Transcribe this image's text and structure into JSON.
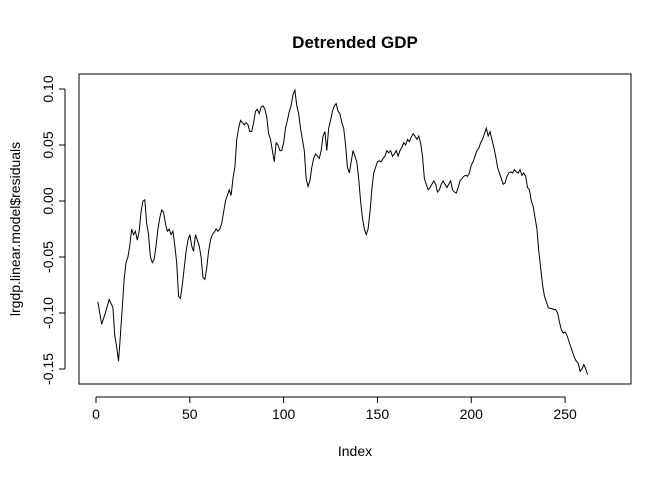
{
  "chart_data": {
    "type": "line",
    "title": "Detrended GDP",
    "xlabel": "Index",
    "ylabel": "lrgdp.linear.model$residuals",
    "xlim": [
      0,
      275
    ],
    "ylim": [
      -0.155,
      0.1
    ],
    "x_ticks": [
      0,
      50,
      100,
      150,
      200,
      250
    ],
    "y_ticks": [
      -0.15,
      -0.1,
      -0.05,
      0.0,
      0.05,
      0.1
    ],
    "y_tick_labels": [
      "-0.15",
      "-0.10",
      "-0.05",
      "0.00",
      "0.05",
      "0.10"
    ],
    "grid": false,
    "series": [
      {
        "points": [
          [
            1,
            -0.09
          ],
          [
            3,
            -0.11
          ],
          [
            5,
            -0.1
          ],
          [
            7,
            -0.088
          ],
          [
            9,
            -0.095
          ],
          [
            10,
            -0.12
          ],
          [
            11,
            -0.13
          ],
          [
            12,
            -0.143
          ],
          [
            13,
            -0.12
          ],
          [
            14,
            -0.095
          ],
          [
            15,
            -0.07
          ],
          [
            16,
            -0.055
          ],
          [
            17,
            -0.05
          ],
          [
            18,
            -0.04
          ],
          [
            19,
            -0.025
          ],
          [
            20,
            -0.03
          ],
          [
            21,
            -0.027
          ],
          [
            22,
            -0.035
          ],
          [
            23,
            -0.027
          ],
          [
            24,
            -0.01
          ],
          [
            25,
            0.0
          ],
          [
            26,
            0.001
          ],
          [
            27,
            -0.02
          ],
          [
            28,
            -0.03
          ],
          [
            29,
            -0.05
          ],
          [
            30,
            -0.055
          ],
          [
            31,
            -0.052
          ],
          [
            32,
            -0.04
          ],
          [
            33,
            -0.025
          ],
          [
            34,
            -0.015
          ],
          [
            35,
            -0.008
          ],
          [
            36,
            -0.01
          ],
          [
            37,
            -0.02
          ],
          [
            38,
            -0.027
          ],
          [
            39,
            -0.025
          ],
          [
            40,
            -0.03
          ],
          [
            41,
            -0.027
          ],
          [
            42,
            -0.04
          ],
          [
            43,
            -0.055
          ],
          [
            44,
            -0.085
          ],
          [
            45,
            -0.087
          ],
          [
            46,
            -0.075
          ],
          [
            47,
            -0.06
          ],
          [
            48,
            -0.045
          ],
          [
            49,
            -0.035
          ],
          [
            50,
            -0.03
          ],
          [
            51,
            -0.04
          ],
          [
            52,
            -0.045
          ],
          [
            53,
            -0.03
          ],
          [
            54,
            -0.035
          ],
          [
            55,
            -0.04
          ],
          [
            56,
            -0.05
          ],
          [
            57,
            -0.068
          ],
          [
            58,
            -0.07
          ],
          [
            59,
            -0.06
          ],
          [
            60,
            -0.045
          ],
          [
            61,
            -0.035
          ],
          [
            62,
            -0.03
          ],
          [
            63,
            -0.028
          ],
          [
            64,
            -0.025
          ],
          [
            65,
            -0.027
          ],
          [
            66,
            -0.025
          ],
          [
            67,
            -0.02
          ],
          [
            68,
            -0.01
          ],
          [
            69,
            0.0
          ],
          [
            70,
            0.005
          ],
          [
            71,
            0.01
          ],
          [
            72,
            0.005
          ],
          [
            73,
            0.02
          ],
          [
            74,
            0.03
          ],
          [
            75,
            0.055
          ],
          [
            76,
            0.065
          ],
          [
            77,
            0.072
          ],
          [
            78,
            0.07
          ],
          [
            79,
            0.068
          ],
          [
            80,
            0.07
          ],
          [
            81,
            0.068
          ],
          [
            82,
            0.062
          ],
          [
            83,
            0.062
          ],
          [
            84,
            0.07
          ],
          [
            85,
            0.08
          ],
          [
            86,
            0.082
          ],
          [
            87,
            0.078
          ],
          [
            88,
            0.084
          ],
          [
            89,
            0.085
          ],
          [
            90,
            0.082
          ],
          [
            91,
            0.075
          ],
          [
            92,
            0.06
          ],
          [
            93,
            0.055
          ],
          [
            94,
            0.045
          ],
          [
            95,
            0.035
          ],
          [
            96,
            0.052
          ],
          [
            97,
            0.05
          ],
          [
            98,
            0.045
          ],
          [
            99,
            0.045
          ],
          [
            100,
            0.052
          ],
          [
            101,
            0.065
          ],
          [
            102,
            0.072
          ],
          [
            103,
            0.08
          ],
          [
            104,
            0.085
          ],
          [
            105,
            0.095
          ],
          [
            106,
            0.099
          ],
          [
            107,
            0.085
          ],
          [
            108,
            0.078
          ],
          [
            109,
            0.065
          ],
          [
            110,
            0.055
          ],
          [
            111,
            0.045
          ],
          [
            112,
            0.02
          ],
          [
            113,
            0.013
          ],
          [
            114,
            0.018
          ],
          [
            115,
            0.03
          ],
          [
            116,
            0.038
          ],
          [
            117,
            0.042
          ],
          [
            118,
            0.04
          ],
          [
            119,
            0.038
          ],
          [
            120,
            0.045
          ],
          [
            121,
            0.058
          ],
          [
            122,
            0.062
          ],
          [
            123,
            0.045
          ],
          [
            124,
            0.065
          ],
          [
            125,
            0.072
          ],
          [
            126,
            0.08
          ],
          [
            127,
            0.085
          ],
          [
            128,
            0.087
          ],
          [
            129,
            0.08
          ],
          [
            130,
            0.078
          ],
          [
            131,
            0.07
          ],
          [
            132,
            0.065
          ],
          [
            133,
            0.05
          ],
          [
            134,
            0.03
          ],
          [
            135,
            0.025
          ],
          [
            136,
            0.035
          ],
          [
            137,
            0.045
          ],
          [
            138,
            0.04
          ],
          [
            139,
            0.035
          ],
          [
            140,
            0.02
          ],
          [
            141,
            0.0
          ],
          [
            142,
            -0.015
          ],
          [
            143,
            -0.025
          ],
          [
            144,
            -0.03
          ],
          [
            145,
            -0.025
          ],
          [
            146,
            -0.01
          ],
          [
            147,
            0.01
          ],
          [
            148,
            0.025
          ],
          [
            149,
            0.03
          ],
          [
            150,
            0.035
          ],
          [
            151,
            0.036
          ],
          [
            152,
            0.035
          ],
          [
            153,
            0.038
          ],
          [
            154,
            0.04
          ],
          [
            155,
            0.045
          ],
          [
            156,
            0.043
          ],
          [
            157,
            0.045
          ],
          [
            158,
            0.04
          ],
          [
            159,
            0.042
          ],
          [
            160,
            0.045
          ],
          [
            161,
            0.04
          ],
          [
            162,
            0.045
          ],
          [
            163,
            0.048
          ],
          [
            164,
            0.052
          ],
          [
            165,
            0.05
          ],
          [
            166,
            0.055
          ],
          [
            167,
            0.053
          ],
          [
            168,
            0.057
          ],
          [
            169,
            0.06
          ],
          [
            170,
            0.058
          ],
          [
            171,
            0.055
          ],
          [
            172,
            0.058
          ],
          [
            173,
            0.052
          ],
          [
            174,
            0.04
          ],
          [
            175,
            0.02
          ],
          [
            176,
            0.015
          ],
          [
            177,
            0.01
          ],
          [
            178,
            0.012
          ],
          [
            179,
            0.015
          ],
          [
            180,
            0.018
          ],
          [
            181,
            0.015
          ],
          [
            182,
            0.008
          ],
          [
            183,
            0.01
          ],
          [
            184,
            0.015
          ],
          [
            185,
            0.018
          ],
          [
            186,
            0.015
          ],
          [
            187,
            0.012
          ],
          [
            188,
            0.015
          ],
          [
            189,
            0.018
          ],
          [
            190,
            0.01
          ],
          [
            191,
            0.008
          ],
          [
            192,
            0.007
          ],
          [
            193,
            0.012
          ],
          [
            194,
            0.018
          ],
          [
            195,
            0.02
          ],
          [
            196,
            0.022
          ],
          [
            197,
            0.023
          ],
          [
            198,
            0.022
          ],
          [
            199,
            0.025
          ],
          [
            200,
            0.032
          ],
          [
            201,
            0.035
          ],
          [
            202,
            0.04
          ],
          [
            203,
            0.045
          ],
          [
            204,
            0.047
          ],
          [
            205,
            0.052
          ],
          [
            206,
            0.055
          ],
          [
            207,
            0.06
          ],
          [
            208,
            0.065
          ],
          [
            209,
            0.058
          ],
          [
            210,
            0.062
          ],
          [
            211,
            0.055
          ],
          [
            212,
            0.048
          ],
          [
            213,
            0.04
          ],
          [
            214,
            0.03
          ],
          [
            215,
            0.025
          ],
          [
            216,
            0.02
          ],
          [
            217,
            0.015
          ],
          [
            218,
            0.016
          ],
          [
            219,
            0.022
          ],
          [
            220,
            0.025
          ],
          [
            221,
            0.026
          ],
          [
            222,
            0.025
          ],
          [
            223,
            0.028
          ],
          [
            224,
            0.026
          ],
          [
            225,
            0.025
          ],
          [
            226,
            0.028
          ],
          [
            227,
            0.023
          ],
          [
            228,
            0.025
          ],
          [
            229,
            0.022
          ],
          [
            230,
            0.012
          ],
          [
            231,
            0.01
          ],
          [
            232,
            0.0
          ],
          [
            233,
            -0.005
          ],
          [
            234,
            -0.015
          ],
          [
            235,
            -0.025
          ],
          [
            236,
            -0.045
          ],
          [
            237,
            -0.06
          ],
          [
            238,
            -0.075
          ],
          [
            239,
            -0.085
          ],
          [
            240,
            -0.09
          ],
          [
            241,
            -0.095
          ],
          [
            242,
            -0.096
          ],
          [
            243,
            -0.096
          ],
          [
            244,
            -0.097
          ],
          [
            245,
            -0.097
          ],
          [
            246,
            -0.1
          ],
          [
            247,
            -0.108
          ],
          [
            248,
            -0.115
          ],
          [
            249,
            -0.118
          ],
          [
            250,
            -0.117
          ],
          [
            251,
            -0.12
          ],
          [
            252,
            -0.125
          ],
          [
            253,
            -0.13
          ],
          [
            254,
            -0.135
          ],
          [
            255,
            -0.14
          ],
          [
            256,
            -0.143
          ],
          [
            257,
            -0.145
          ],
          [
            258,
            -0.152
          ],
          [
            259,
            -0.15
          ],
          [
            260,
            -0.146
          ],
          [
            261,
            -0.15
          ],
          [
            262,
            -0.155
          ]
        ]
      }
    ]
  }
}
